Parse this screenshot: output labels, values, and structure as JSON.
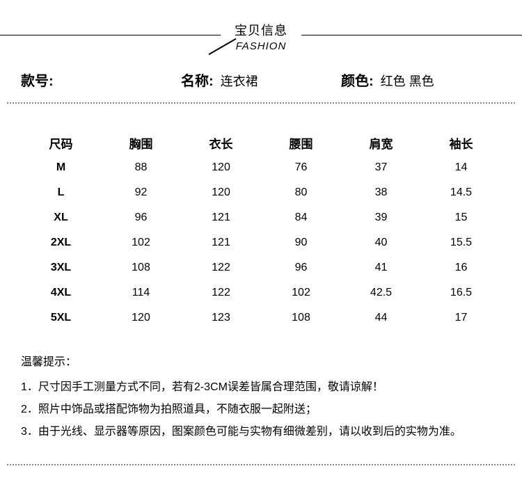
{
  "header": {
    "title_cn": "宝贝信息",
    "title_en": "FASHION"
  },
  "info": {
    "model_label": "款号:",
    "model_value": "",
    "name_label": "名称:",
    "name_value": "连衣裙",
    "color_label": "颜色:",
    "color_value": "红色 黑色"
  },
  "size_table": {
    "type": "table",
    "columns": [
      "尺码",
      "胸围",
      "衣长",
      "腰围",
      "肩宽",
      "袖长"
    ],
    "rows": [
      [
        "M",
        "88",
        "120",
        "76",
        "37",
        "14"
      ],
      [
        "L",
        "92",
        "120",
        "80",
        "38",
        "14.5"
      ],
      [
        "XL",
        "96",
        "121",
        "84",
        "39",
        "15"
      ],
      [
        "2XL",
        "102",
        "121",
        "90",
        "40",
        "15.5"
      ],
      [
        "3XL",
        "108",
        "122",
        "96",
        "41",
        "16"
      ],
      [
        "4XL",
        "114",
        "122",
        "102",
        "42.5",
        "16.5"
      ],
      [
        "5XL",
        "120",
        "123",
        "108",
        "44",
        "17"
      ]
    ],
    "header_fontsize": 17,
    "cell_fontsize": 16,
    "header_fontweight": 700,
    "first_col_fontweight": 700,
    "background_color": "#ffffff",
    "text_color": "#000000"
  },
  "tips": {
    "title": "温馨提示：",
    "items": [
      "1．尺寸因手工测量方式不同，若有2-3CM误差皆属合理范围，敬请谅解！",
      "2．照片中饰品或搭配饰物为拍照道具，不随衣服一起附送；",
      "3．由于光线、显示器等原因，图案颜色可能与实物有细微差别，请以收到后的实物为准。"
    ]
  },
  "colors": {
    "text": "#000000",
    "background": "#ffffff",
    "dotted_border": "#888888"
  }
}
